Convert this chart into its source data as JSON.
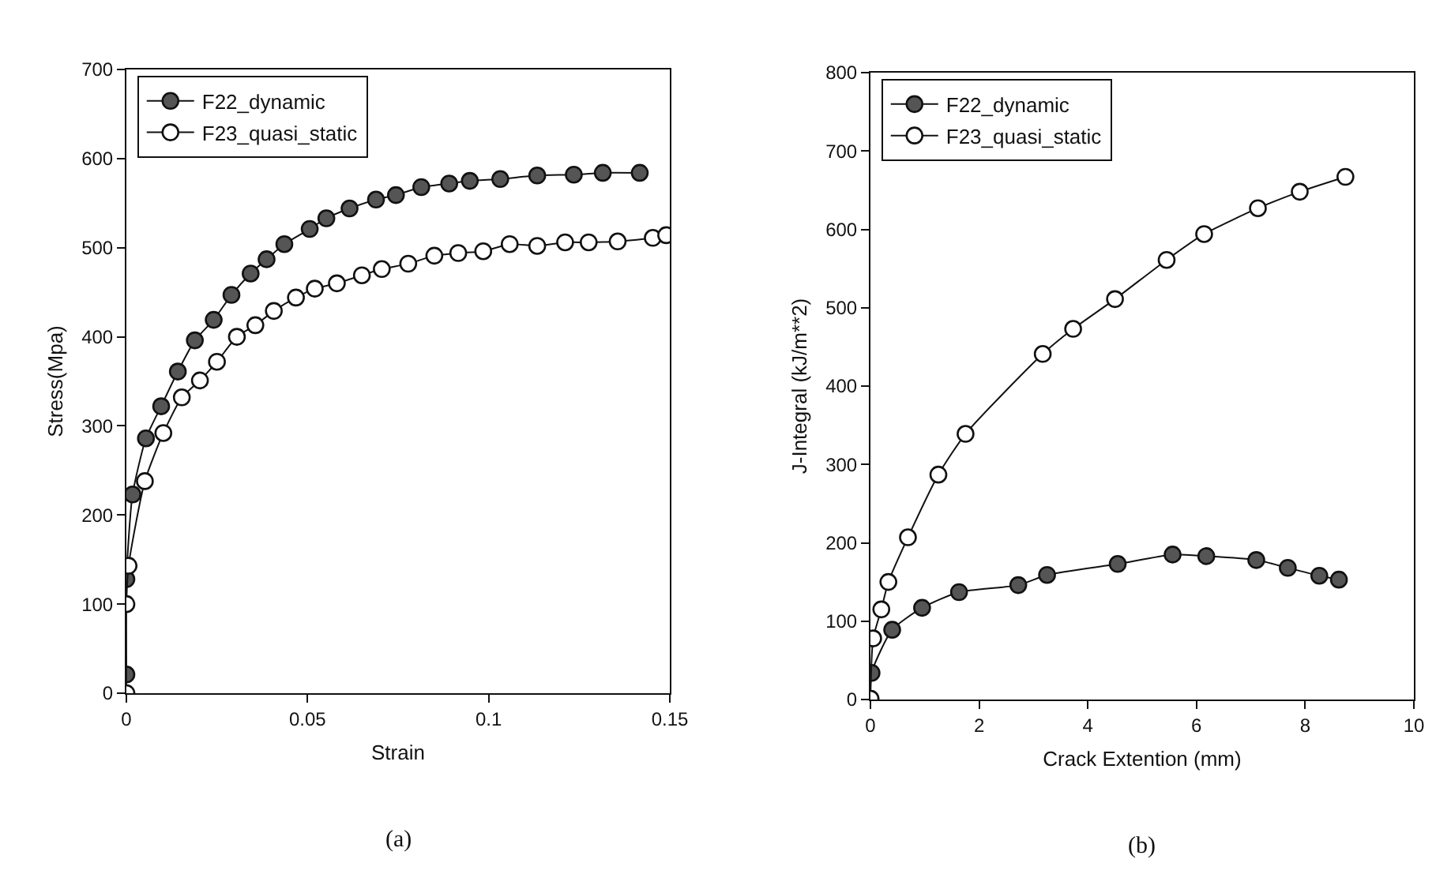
{
  "chart_data": [
    {
      "type": "line",
      "xlabel": "Strain",
      "ylabel": "Stress(Mpa)",
      "xlim": [
        0,
        0.15
      ],
      "ylim": [
        0,
        700
      ],
      "xticks": [
        0,
        0.05,
        0.1,
        0.15
      ],
      "yticks": [
        0,
        100,
        200,
        300,
        400,
        500,
        600,
        700
      ],
      "grid": false,
      "legend": "top left",
      "marker": "circle",
      "line_style": "solid",
      "annotations": [
        "(a)"
      ],
      "series": [
        {
          "name": "F22_dynamic",
          "color": "#555555",
          "x": [
            0,
            0,
            0.0017,
            0.0054,
            0.0096,
            0.0142,
            0.0189,
            0.0241,
            0.029,
            0.0343,
            0.0387,
            0.0436,
            0.0506,
            0.0552,
            0.0616,
            0.0689,
            0.0744,
            0.0814,
            0.0891,
            0.0948,
            0.1032,
            0.1134,
            0.1235,
            0.1315,
            0.1417
          ],
          "values": [
            21,
            128,
            223,
            286,
            322,
            361,
            396,
            419,
            447,
            471,
            487,
            504,
            521,
            533,
            544,
            554,
            559,
            568,
            572,
            575,
            577,
            581,
            582,
            584,
            584
          ]
        },
        {
          "name": "F23_quasi_static",
          "color": "#ffffff",
          "x": [
            0,
            0,
            0.0006,
            0.0051,
            0.0102,
            0.0153,
            0.0203,
            0.025,
            0.0305,
            0.0356,
            0.0407,
            0.0468,
            0.052,
            0.0581,
            0.065,
            0.0705,
            0.0778,
            0.085,
            0.0916,
            0.0985,
            0.1058,
            0.1134,
            0.1211,
            0.1276,
            0.1356,
            0.1453,
            0.149
          ],
          "values": [
            0,
            100,
            143,
            238,
            292,
            332,
            351,
            372,
            400,
            413,
            429,
            444,
            454,
            460,
            469,
            476,
            482,
            491,
            494,
            496,
            504,
            502,
            506,
            506,
            507,
            511,
            514
          ]
        }
      ]
    },
    {
      "type": "line",
      "xlabel": "Crack Extention (mm)",
      "ylabel": "J-Integral (kJ/m**2)",
      "xlim": [
        0,
        10
      ],
      "ylim": [
        0,
        800
      ],
      "xticks": [
        0,
        2,
        4,
        6,
        8,
        10
      ],
      "yticks": [
        0,
        100,
        200,
        300,
        400,
        500,
        600,
        700,
        800
      ],
      "grid": false,
      "legend": "top left",
      "marker": "circle",
      "line_style": "solid",
      "annotations": [
        "(b)"
      ],
      "series": [
        {
          "name": "F22_dynamic",
          "color": "#555555",
          "x": [
            0,
            0.02,
            0.4,
            0.95,
            1.63,
            2.72,
            3.25,
            4.55,
            5.56,
            6.18,
            7.1,
            7.68,
            8.26,
            8.62
          ],
          "values": [
            1,
            34,
            89,
            117,
            137,
            146,
            159,
            173,
            185,
            183,
            178,
            168,
            158,
            153
          ]
        },
        {
          "name": "F23_quasi_static",
          "color": "#ffffff",
          "x": [
            0,
            0.05,
            0.2,
            0.33,
            0.69,
            1.25,
            1.75,
            3.17,
            3.73,
            4.5,
            5.45,
            6.14,
            7.13,
            7.9,
            8.74
          ],
          "values": [
            1,
            78,
            115,
            150,
            207,
            287,
            339,
            441,
            473,
            511,
            561,
            594,
            627,
            648,
            667
          ]
        }
      ]
    }
  ]
}
